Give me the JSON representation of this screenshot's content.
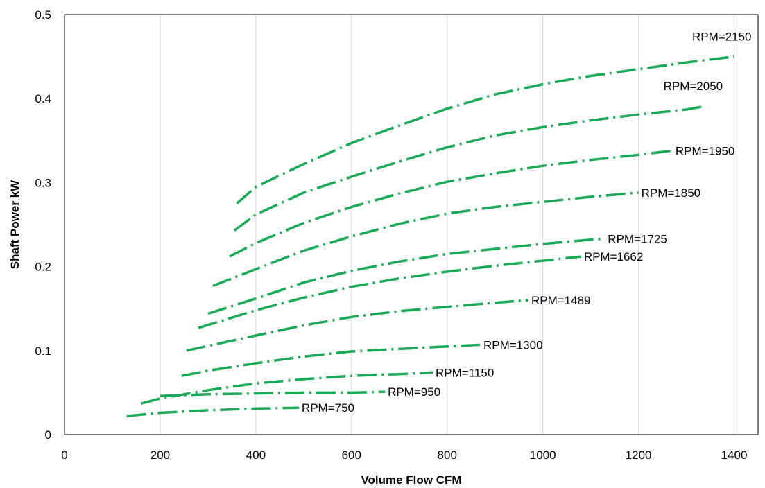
{
  "chart_data": {
    "type": "line",
    "title": "",
    "xlabel": "Volume Flow CFM",
    "ylabel": "Shaft Power kW",
    "xlim": [
      0,
      1450
    ],
    "ylim": [
      0,
      0.5
    ],
    "xticks": [
      0,
      200,
      400,
      600,
      800,
      1000,
      1200,
      1400
    ],
    "yticks": [
      0,
      0.1,
      0.2,
      0.3,
      0.4,
      0.5
    ],
    "xtick_labels": [
      "0",
      "200",
      "400",
      "600",
      "800",
      "1000",
      "1200",
      "1400"
    ],
    "ytick_labels": [
      "0",
      "0.1",
      "0.2",
      "0.3",
      "0.4",
      "0.5"
    ],
    "grid": "vertical",
    "line_color": "#1aaa55",
    "line_style": "dash-dot",
    "series": [
      {
        "name": "RPM=2150",
        "x": [
          360,
          400,
          500,
          600,
          700,
          800,
          900,
          1000,
          1100,
          1200,
          1300,
          1400
        ],
        "y": [
          0.275,
          0.295,
          0.322,
          0.347,
          0.368,
          0.388,
          0.405,
          0.417,
          0.427,
          0.435,
          0.443,
          0.45
        ]
      },
      {
        "name": "RPM=2050",
        "x": [
          355,
          400,
          500,
          600,
          700,
          800,
          900,
          1000,
          1100,
          1200,
          1300,
          1340
        ],
        "y": [
          0.243,
          0.262,
          0.288,
          0.307,
          0.325,
          0.342,
          0.356,
          0.366,
          0.374,
          0.381,
          0.387,
          0.391
        ]
      },
      {
        "name": "RPM=1950",
        "x": [
          345,
          400,
          500,
          600,
          700,
          800,
          900,
          1000,
          1100,
          1200,
          1270
        ],
        "y": [
          0.212,
          0.228,
          0.252,
          0.271,
          0.287,
          0.301,
          0.311,
          0.32,
          0.327,
          0.333,
          0.338
        ]
      },
      {
        "name": "RPM=1850",
        "x": [
          310,
          400,
          500,
          600,
          700,
          800,
          900,
          1000,
          1100,
          1200
        ],
        "y": [
          0.177,
          0.197,
          0.219,
          0.236,
          0.251,
          0.263,
          0.271,
          0.277,
          0.283,
          0.288
        ]
      },
      {
        "name": "RPM=1725",
        "x": [
          300,
          400,
          500,
          600,
          700,
          800,
          900,
          1000,
          1100,
          1130
        ],
        "y": [
          0.144,
          0.162,
          0.181,
          0.195,
          0.206,
          0.215,
          0.221,
          0.227,
          0.232,
          0.233
        ]
      },
      {
        "name": "RPM=1662",
        "x": [
          280,
          400,
          500,
          600,
          700,
          800,
          900,
          1000,
          1080
        ],
        "y": [
          0.127,
          0.148,
          0.163,
          0.176,
          0.186,
          0.194,
          0.201,
          0.207,
          0.212
        ]
      },
      {
        "name": "RPM=1489",
        "x": [
          255,
          400,
          500,
          600,
          700,
          800,
          900,
          970
        ],
        "y": [
          0.1,
          0.118,
          0.13,
          0.14,
          0.147,
          0.152,
          0.157,
          0.16
        ]
      },
      {
        "name": "RPM=1300",
        "x": [
          245,
          300,
          400,
          500,
          600,
          700,
          800,
          870
        ],
        "y": [
          0.07,
          0.076,
          0.085,
          0.093,
          0.099,
          0.102,
          0.105,
          0.107
        ]
      },
      {
        "name": "RPM=1150",
        "x": [
          160,
          200,
          300,
          400,
          500,
          600,
          700,
          770
        ],
        "y": [
          0.037,
          0.043,
          0.053,
          0.061,
          0.066,
          0.07,
          0.072,
          0.074
        ]
      },
      {
        "name": "RPM=950",
        "x": [
          200,
          300,
          400,
          500,
          600,
          670
        ],
        "y": [
          0.046,
          0.048,
          0.049,
          0.05,
          0.05,
          0.051
        ]
      },
      {
        "name": "RPM=750",
        "x": [
          130,
          200,
          300,
          400,
          490
        ],
        "y": [
          0.022,
          0.026,
          0.029,
          0.031,
          0.032
        ]
      }
    ]
  }
}
